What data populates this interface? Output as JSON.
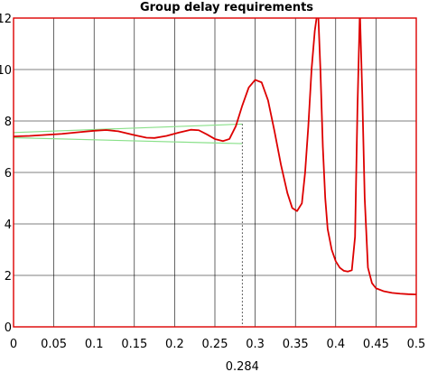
{
  "chart_data": {
    "type": "line",
    "title": "Group delay requirements",
    "xlabel": "",
    "ylabel": "",
    "xlim": [
      0,
      0.5
    ],
    "ylim": [
      0,
      12
    ],
    "x_ticks": [
      0,
      0.05,
      0.1,
      0.15,
      0.2,
      0.25,
      0.3,
      0.35,
      0.4,
      0.45,
      0.5
    ],
    "x_tick_labels": [
      "0",
      "0.05",
      "0.1",
      "0.15",
      "0.2",
      "0.25",
      "0.3",
      "0.35",
      "0.4",
      "0.45",
      "0.5"
    ],
    "y_ticks": [
      0,
      2,
      4,
      6,
      8,
      10,
      12
    ],
    "y_tick_labels": [
      "0",
      "2",
      "4",
      "6",
      "8",
      "10",
      "12"
    ],
    "grid": true,
    "annotation": {
      "x": 0.284,
      "label": "0.284"
    },
    "colors": {
      "main": "#dd0000",
      "bounds": "#88e088",
      "axes": "#dd0000",
      "grid": "#000000"
    },
    "series": [
      {
        "color": "#dd0000",
        "x": [
          0,
          0.02,
          0.04,
          0.06,
          0.08,
          0.1,
          0.115,
          0.13,
          0.15,
          0.165,
          0.175,
          0.19,
          0.205,
          0.22,
          0.23,
          0.24,
          0.25,
          0.26,
          0.268,
          0.276,
          0.284,
          0.292,
          0.3,
          0.308,
          0.316,
          0.324,
          0.332,
          0.34,
          0.346,
          0.352,
          0.358,
          0.362,
          0.366,
          0.37,
          0.374,
          0.378,
          0.381,
          0.384,
          0.387,
          0.39,
          0.395,
          0.4,
          0.405,
          0.41,
          0.415,
          0.42,
          0.424,
          0.427,
          0.43,
          0.433,
          0.436,
          0.44,
          0.445,
          0.45,
          0.46,
          0.47,
          0.48,
          0.49,
          0.5
        ],
        "y": [
          7.4,
          7.42,
          7.46,
          7.5,
          7.56,
          7.62,
          7.65,
          7.6,
          7.45,
          7.35,
          7.34,
          7.42,
          7.55,
          7.66,
          7.64,
          7.48,
          7.3,
          7.22,
          7.3,
          7.8,
          8.6,
          9.3,
          9.6,
          9.5,
          8.8,
          7.6,
          6.3,
          5.2,
          4.62,
          4.5,
          4.8,
          6.0,
          7.8,
          10.0,
          11.5,
          12.4,
          10.0,
          7.0,
          5.0,
          3.8,
          3.0,
          2.55,
          2.3,
          2.18,
          2.15,
          2.2,
          3.5,
          8.5,
          12.3,
          9.0,
          5.0,
          2.3,
          1.7,
          1.5,
          1.38,
          1.32,
          1.29,
          1.27,
          1.26
        ]
      }
    ],
    "bounds": [
      {
        "color": "#88e088",
        "x": [
          0,
          0.284
        ],
        "y": [
          7.55,
          7.88
        ]
      },
      {
        "color": "#88e088",
        "x": [
          0,
          0.284
        ],
        "y": [
          7.35,
          7.12
        ]
      }
    ]
  }
}
